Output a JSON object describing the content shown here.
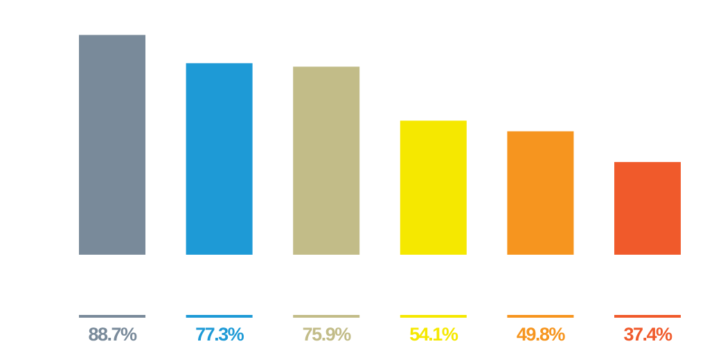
{
  "chart_data": {
    "type": "bar",
    "title": "",
    "xlabel": "",
    "ylabel": "",
    "ylim": [
      0,
      100
    ],
    "grid": false,
    "legend": "none",
    "values": [
      88.7,
      77.3,
      75.9,
      54.1,
      49.8,
      37.4
    ],
    "labels": [
      "88.7%",
      "77.3%",
      "75.9%",
      "54.1%",
      "49.8%",
      "37.4%"
    ],
    "colors": [
      "#798a9a",
      "#1e9ad6",
      "#c2bc88",
      "#f5e800",
      "#f6951f",
      "#f05a2b"
    ]
  }
}
